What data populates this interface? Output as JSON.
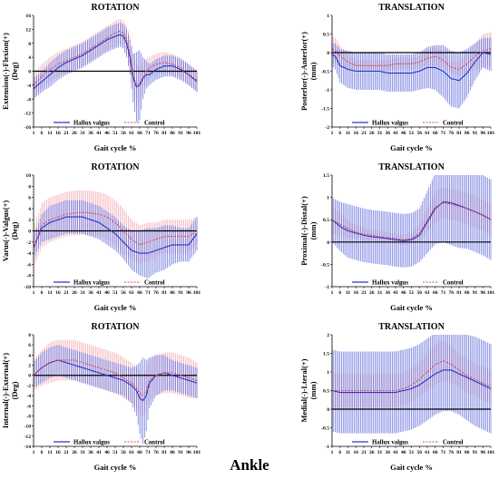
{
  "figure_title": "Ankle",
  "legend_labels": [
    "Hallux valgus",
    "Control"
  ],
  "colors": {
    "hv": "#2a35c8",
    "hv_band": "#4a56d6",
    "ctrl": "#d94a5e",
    "ctrl_band": "#f08e98",
    "zero": "#000000"
  },
  "chart_data": [
    {
      "type": "line",
      "title": "ROTATION",
      "ylabel": "Extension(-)-Flexion(+) (Deg)",
      "xlabel": "Gait cycle %",
      "x_ticks": [
        1,
        6,
        11,
        16,
        21,
        26,
        31,
        36,
        41,
        46,
        51,
        56,
        61,
        66,
        71,
        76,
        81,
        86,
        91,
        96,
        101
      ],
      "y_ticks": [
        -16,
        -12,
        -8,
        -4,
        0,
        4,
        8,
        12,
        16
      ],
      "ylim": [
        -16,
        16
      ],
      "series": [
        {
          "name": "Hallux valgus",
          "x": [
            1,
            6,
            11,
            16,
            21,
            26,
            31,
            36,
            41,
            46,
            51,
            54,
            56,
            58,
            60,
            62,
            64,
            66,
            68,
            70,
            72,
            76,
            81,
            86,
            91,
            96,
            101
          ],
          "mean": [
            -5,
            -3,
            -1,
            1,
            2.5,
            3.5,
            4.5,
            6,
            7.5,
            9,
            10,
            10.5,
            10,
            8,
            4,
            -2,
            -4.5,
            -4,
            -2,
            -1,
            -1,
            0.5,
            1.5,
            1.5,
            0.5,
            -1,
            -3
          ],
          "sd": [
            3,
            3,
            3.5,
            3.5,
            3.5,
            3.5,
            3.5,
            3.5,
            3.5,
            3.5,
            3.5,
            3.5,
            3.5,
            4,
            5,
            7,
            10,
            10,
            6,
            4,
            3,
            3,
            3,
            3,
            3,
            3,
            3
          ]
        },
        {
          "name": "Control",
          "x": [
            1,
            6,
            11,
            16,
            21,
            26,
            31,
            36,
            41,
            46,
            51,
            54,
            56,
            58,
            60,
            62,
            64,
            66,
            68,
            70,
            72,
            76,
            81,
            86,
            91,
            96,
            101
          ],
          "mean": [
            -4,
            -1.5,
            0.5,
            2,
            3,
            4,
            5,
            6.5,
            8,
            9.5,
            11,
            11.5,
            11,
            9,
            5,
            -1,
            -4,
            -3.5,
            -1.5,
            0,
            1,
            2,
            2.5,
            2,
            1,
            -1,
            -2.5
          ],
          "sd": [
            3.5,
            3.5,
            3.5,
            3.5,
            3.5,
            3.5,
            3.5,
            3.5,
            3.5,
            3.5,
            3.5,
            3.5,
            3.5,
            4,
            5,
            6,
            6,
            5,
            4,
            3.5,
            3,
            3,
            3,
            3,
            3,
            3,
            3
          ]
        }
      ]
    },
    {
      "type": "line",
      "title": "TRANSLATION",
      "ylabel": "Posterlor(-)-Anterlor(+) (mm)",
      "xlabel": "Gait cycle %",
      "x_ticks": [
        1,
        6,
        11,
        16,
        21,
        26,
        31,
        36,
        41,
        46,
        51,
        56,
        61,
        66,
        71,
        76,
        81,
        86,
        91,
        96,
        101
      ],
      "y_ticks": [
        -2,
        -1.5,
        -1,
        -0.5,
        0,
        0.5,
        1
      ],
      "ylim": [
        -2,
        1
      ],
      "series": [
        {
          "name": "Hallux valgus",
          "x": [
            1,
            3,
            6,
            11,
            16,
            21,
            26,
            31,
            36,
            41,
            46,
            51,
            56,
            61,
            66,
            71,
            76,
            81,
            86,
            91,
            96,
            101
          ],
          "mean": [
            -0.05,
            -0.1,
            -0.35,
            -0.45,
            -0.5,
            -0.5,
            -0.5,
            -0.5,
            -0.55,
            -0.55,
            -0.55,
            -0.55,
            -0.5,
            -0.4,
            -0.4,
            -0.5,
            -0.7,
            -0.75,
            -0.55,
            -0.25,
            0,
            -0.05
          ],
          "sd": [
            0.3,
            0.35,
            0.45,
            0.5,
            0.5,
            0.5,
            0.5,
            0.5,
            0.5,
            0.5,
            0.5,
            0.5,
            0.5,
            0.55,
            0.6,
            0.7,
            0.75,
            0.75,
            0.65,
            0.5,
            0.4,
            0.45
          ]
        },
        {
          "name": "Control",
          "x": [
            1,
            3,
            6,
            11,
            16,
            21,
            26,
            31,
            36,
            41,
            46,
            51,
            56,
            61,
            66,
            71,
            76,
            81,
            86,
            91,
            96,
            101
          ],
          "mean": [
            0.1,
            0.05,
            -0.1,
            -0.25,
            -0.35,
            -0.35,
            -0.35,
            -0.35,
            -0.35,
            -0.3,
            -0.3,
            -0.3,
            -0.25,
            -0.15,
            -0.1,
            -0.2,
            -0.4,
            -0.45,
            -0.3,
            -0.1,
            0.05,
            0.1
          ],
          "sd": [
            0.35,
            0.35,
            0.3,
            0.2,
            0.15,
            0.15,
            0.15,
            0.15,
            0.15,
            0.15,
            0.15,
            0.15,
            0.15,
            0.2,
            0.25,
            0.2,
            0.15,
            0.2,
            0.25,
            0.35,
            0.45,
            0.45
          ]
        }
      ]
    },
    {
      "type": "line",
      "title": "ROTATION",
      "ylabel": "Varus(-)-Valgus(+) (Deg)",
      "xlabel": "Gait cycle %",
      "x_ticks": [
        1,
        6,
        11,
        16,
        21,
        26,
        31,
        36,
        41,
        46,
        51,
        56,
        61,
        66,
        71,
        76,
        81,
        86,
        91,
        96,
        101
      ],
      "y_ticks": [
        -10,
        -8,
        -6,
        -4,
        -2,
        0,
        2,
        4,
        6,
        8,
        10
      ],
      "ylim": [
        -10,
        10
      ],
      "series": [
        {
          "name": "Hallux valgus",
          "x": [
            1,
            6,
            11,
            16,
            21,
            26,
            31,
            36,
            41,
            46,
            51,
            56,
            61,
            66,
            71,
            76,
            81,
            86,
            91,
            96,
            101
          ],
          "mean": [
            -3,
            0.5,
            1.5,
            2,
            2.5,
            2.5,
            2.5,
            2,
            1.5,
            0.5,
            -0.5,
            -2,
            -3.5,
            -4,
            -4,
            -3.5,
            -3,
            -2.5,
            -2.5,
            -2.5,
            -0.5
          ],
          "sd": [
            2,
            2.5,
            3,
            3,
            3,
            3,
            3,
            3,
            3,
            3,
            3,
            3,
            3.5,
            4,
            4.5,
            4,
            4,
            3.5,
            3,
            3,
            3
          ]
        },
        {
          "name": "Control",
          "x": [
            1,
            6,
            11,
            16,
            21,
            26,
            31,
            36,
            41,
            46,
            51,
            56,
            61,
            66,
            71,
            76,
            81,
            86,
            91,
            96,
            101
          ],
          "mean": [
            -3,
            1,
            2,
            2.5,
            3,
            3.2,
            3.3,
            3.2,
            3,
            2.5,
            1.5,
            0,
            -1.5,
            -2.5,
            -2,
            -1.5,
            -1,
            -1,
            -1,
            -1,
            0
          ],
          "sd": [
            3.5,
            4,
            4,
            4,
            4,
            4,
            4,
            4,
            4,
            4,
            4,
            4,
            3.5,
            3.5,
            3.5,
            3,
            3,
            3,
            3,
            3,
            2.5
          ]
        }
      ]
    },
    {
      "type": "line",
      "title": "TRANSLATION",
      "ylabel": "Proximal(-)-Distal(+) (mm)",
      "xlabel": "Gait cycle %",
      "x_ticks": [
        1,
        6,
        11,
        16,
        21,
        26,
        31,
        36,
        41,
        46,
        51,
        56,
        61,
        66,
        71,
        76,
        81,
        86,
        91,
        96,
        101
      ],
      "y_ticks": [
        -1,
        -0.5,
        0,
        0.5,
        1,
        1.5
      ],
      "ylim": [
        -1,
        1.5
      ],
      "series": [
        {
          "name": "Hallux valgus",
          "x": [
            1,
            6,
            11,
            16,
            21,
            26,
            31,
            36,
            41,
            46,
            51,
            56,
            61,
            66,
            71,
            76,
            81,
            86,
            91,
            96,
            101
          ],
          "mean": [
            0.5,
            0.35,
            0.25,
            0.2,
            0.15,
            0.12,
            0.1,
            0.08,
            0.05,
            0.03,
            0.05,
            0.15,
            0.45,
            0.75,
            0.9,
            0.88,
            0.82,
            0.75,
            0.68,
            0.6,
            0.5
          ],
          "sd": [
            0.5,
            0.55,
            0.6,
            0.6,
            0.6,
            0.6,
            0.6,
            0.6,
            0.6,
            0.6,
            0.6,
            0.6,
            0.7,
            0.8,
            0.9,
            0.95,
            0.95,
            0.9,
            0.9,
            0.9,
            0.9
          ]
        },
        {
          "name": "Control",
          "x": [
            1,
            6,
            11,
            16,
            21,
            26,
            31,
            36,
            41,
            46,
            51,
            56,
            61,
            66,
            71,
            76,
            81,
            86,
            91,
            96,
            101
          ],
          "mean": [
            0.5,
            0.4,
            0.3,
            0.22,
            0.18,
            0.15,
            0.12,
            0.1,
            0.08,
            0.05,
            0.08,
            0.2,
            0.5,
            0.78,
            0.88,
            0.85,
            0.8,
            0.75,
            0.68,
            0.6,
            0.5
          ],
          "sd": [
            0.3,
            0.25,
            0.2,
            0.15,
            0.15,
            0.12,
            0.12,
            0.12,
            0.12,
            0.12,
            0.12,
            0.2,
            0.25,
            0.35,
            0.35,
            0.35,
            0.35,
            0.35,
            0.35,
            0.35,
            0.35
          ]
        }
      ]
    },
    {
      "type": "line",
      "title": "ROTATION",
      "ylabel": "Internal(-)-External(+) (Deg)",
      "xlabel": "Gait cycle %",
      "x_ticks": [
        1,
        6,
        11,
        16,
        21,
        26,
        31,
        36,
        41,
        46,
        51,
        56,
        61,
        66,
        71,
        76,
        81,
        86,
        91,
        96,
        101
      ],
      "y_ticks": [
        -14,
        -12,
        -10,
        -8,
        -6,
        -4,
        -2,
        0,
        2,
        4,
        6,
        8
      ],
      "ylim": [
        -14,
        8
      ],
      "series": [
        {
          "name": "Hallux valgus",
          "x": [
            1,
            6,
            11,
            16,
            21,
            26,
            31,
            36,
            41,
            46,
            51,
            56,
            61,
            64,
            66,
            68,
            70,
            72,
            76,
            81,
            86,
            91,
            96,
            101
          ],
          "mean": [
            0,
            1.5,
            2.5,
            3,
            2.5,
            2,
            1.5,
            1,
            0.5,
            0,
            -0.5,
            -1,
            -2,
            -3,
            -4.5,
            -5,
            -4,
            -1.5,
            0,
            0.5,
            0,
            -0.5,
            -1,
            -1.5
          ],
          "sd": [
            2.5,
            3,
            3,
            3,
            3,
            3,
            3,
            3,
            3,
            3,
            3,
            3,
            3.5,
            5,
            7,
            8.5,
            7,
            5,
            4,
            3.5,
            3,
            3,
            3,
            3
          ]
        },
        {
          "name": "Control",
          "x": [
            1,
            6,
            11,
            16,
            21,
            26,
            31,
            36,
            41,
            46,
            51,
            56,
            61,
            64,
            66,
            68,
            70,
            72,
            76,
            81,
            86,
            91,
            96,
            101
          ],
          "mean": [
            0,
            1.5,
            2.5,
            3,
            3,
            3,
            2.5,
            2,
            1.5,
            1,
            0.5,
            -0.5,
            -1.5,
            -2.5,
            -3.5,
            -4,
            -3,
            -1,
            0,
            0.5,
            0.5,
            0,
            -0.5,
            -1
          ],
          "sd": [
            3,
            3.5,
            4,
            4,
            4,
            4,
            4,
            4,
            4,
            4,
            4,
            4,
            4,
            4,
            4,
            4,
            4,
            4,
            4,
            4,
            4,
            4,
            4,
            3.5
          ]
        }
      ]
    },
    {
      "type": "line",
      "title": "TRANSLATION",
      "ylabel": "Medial(-)-Lteral(+) (mm)",
      "xlabel": "Gait cycle %",
      "x_ticks": [
        1,
        6,
        11,
        16,
        21,
        26,
        31,
        36,
        41,
        46,
        51,
        56,
        61,
        66,
        71,
        76,
        81,
        86,
        91,
        96,
        101
      ],
      "y_ticks": [
        -1,
        -0.5,
        0,
        0.5,
        1,
        1.5,
        2
      ],
      "ylim": [
        -1,
        2
      ],
      "series": [
        {
          "name": "Hallux valgus",
          "x": [
            1,
            6,
            11,
            16,
            21,
            26,
            31,
            36,
            41,
            46,
            51,
            56,
            61,
            66,
            71,
            76,
            81,
            86,
            91,
            96,
            101
          ],
          "mean": [
            0.5,
            0.45,
            0.45,
            0.45,
            0.45,
            0.45,
            0.45,
            0.45,
            0.45,
            0.5,
            0.55,
            0.65,
            0.8,
            0.95,
            1.05,
            1.05,
            0.95,
            0.85,
            0.75,
            0.65,
            0.55
          ],
          "sd": [
            1.1,
            1.1,
            1.1,
            1.1,
            1.1,
            1.1,
            1.1,
            1.1,
            1.1,
            1.1,
            1.1,
            1.1,
            1.1,
            1.1,
            1.1,
            1.1,
            1.1,
            1.15,
            1.2,
            1.2,
            1.2
          ]
        },
        {
          "name": "Control",
          "x": [
            1,
            6,
            11,
            16,
            21,
            26,
            31,
            36,
            41,
            46,
            51,
            56,
            61,
            66,
            71,
            76,
            81,
            86,
            91,
            96,
            101
          ],
          "mean": [
            0.5,
            0.5,
            0.5,
            0.5,
            0.5,
            0.5,
            0.5,
            0.5,
            0.5,
            0.55,
            0.65,
            0.8,
            1,
            1.2,
            1.3,
            1.2,
            1.05,
            0.9,
            0.8,
            0.7,
            0.6
          ],
          "sd": [
            0.45,
            0.45,
            0.45,
            0.45,
            0.45,
            0.45,
            0.45,
            0.45,
            0.45,
            0.45,
            0.45,
            0.45,
            0.5,
            0.55,
            0.55,
            0.5,
            0.45,
            0.45,
            0.45,
            0.45,
            0.45
          ]
        }
      ]
    }
  ]
}
